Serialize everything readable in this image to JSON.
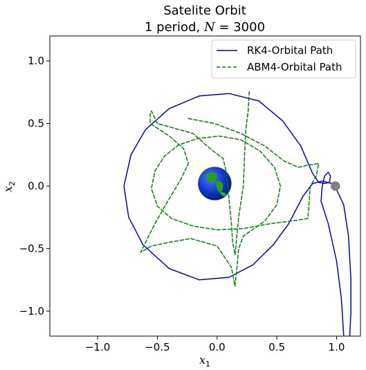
{
  "chart_data": {
    "type": "line",
    "title_line1": "Satelite Orbit",
    "title_line2_prefix": "1 period, ",
    "title_line2_var": "N",
    "title_line2_suffix": " = 3000",
    "xlabel": {
      "symbol": "x",
      "subscript": "1"
    },
    "ylabel": {
      "symbol": "x",
      "subscript": "2"
    },
    "xlim": [
      -1.4,
      1.2
    ],
    "ylim": [
      -1.2,
      1.2
    ],
    "xticks": [
      -1.0,
      -0.5,
      0.0,
      0.5,
      1.0
    ],
    "xtick_labels": [
      "−1.0",
      "−0.5",
      "0.0",
      "0.5",
      "1.0"
    ],
    "yticks": [
      -1.0,
      -0.5,
      0.0,
      0.5,
      1.0
    ],
    "ytick_labels": [
      "−1.0",
      "−0.5",
      "0.0",
      "0.5",
      "1.0"
    ],
    "legend_position": "top-right",
    "series": [
      {
        "name": "RK4-Orbital Path",
        "color": "#0000cc",
        "style": "solid",
        "points": [
          [
            1.06,
            -1.2
          ],
          [
            1.04,
            -0.9
          ],
          [
            1.0,
            -0.6
          ],
          [
            0.93,
            -0.3
          ],
          [
            0.87,
            -0.12
          ],
          [
            0.88,
            0.0
          ],
          [
            0.9,
            0.08
          ],
          [
            0.93,
            0.11
          ],
          [
            0.95,
            0.08
          ],
          [
            0.94,
            0.03
          ],
          [
            0.9,
            0.02
          ],
          [
            0.85,
            0.03
          ],
          [
            0.8,
            0.1
          ],
          [
            0.7,
            0.32
          ],
          [
            0.55,
            0.52
          ],
          [
            0.35,
            0.68
          ],
          [
            0.1,
            0.74
          ],
          [
            -0.15,
            0.72
          ],
          [
            -0.4,
            0.62
          ],
          [
            -0.6,
            0.45
          ],
          [
            -0.72,
            0.25
          ],
          [
            -0.78,
            0.0
          ],
          [
            -0.74,
            -0.25
          ],
          [
            -0.62,
            -0.47
          ],
          [
            -0.4,
            -0.66
          ],
          [
            -0.15,
            -0.75
          ],
          [
            0.1,
            -0.73
          ],
          [
            0.3,
            -0.63
          ],
          [
            0.47,
            -0.47
          ],
          [
            0.6,
            -0.3
          ],
          [
            0.72,
            -0.08
          ],
          [
            0.8,
            0.02
          ],
          [
            0.88,
            0.04
          ],
          [
            0.96,
            0.02
          ],
          [
            1.0,
            -0.03
          ],
          [
            1.06,
            -0.15
          ],
          [
            1.1,
            -0.4
          ],
          [
            1.12,
            -0.75
          ],
          [
            1.12,
            -1.0
          ],
          [
            1.11,
            -1.2
          ]
        ]
      },
      {
        "name": "ABM4-Orbital Path",
        "color": "#008000",
        "style": "dashed",
        "points": [
          [
            -0.24,
            0.54
          ],
          [
            -0.02,
            0.5
          ],
          [
            0.2,
            0.42
          ],
          [
            0.4,
            0.32
          ],
          [
            0.56,
            0.2
          ],
          [
            0.68,
            0.15
          ],
          [
            0.78,
            0.17
          ],
          [
            0.85,
            0.18
          ],
          [
            0.83,
            0.08
          ],
          [
            0.78,
            0.0
          ],
          [
            0.76,
            -0.26
          ],
          [
            0.62,
            -0.28
          ],
          [
            0.45,
            -0.3
          ],
          [
            0.22,
            -0.34
          ],
          [
            0.0,
            -0.35
          ],
          [
            -0.2,
            -0.32
          ],
          [
            -0.38,
            -0.26
          ],
          [
            -0.5,
            -0.16
          ],
          [
            -0.55,
            -0.02
          ],
          [
            -0.52,
            0.12
          ],
          [
            -0.44,
            0.24
          ],
          [
            -0.32,
            0.33
          ],
          [
            -0.16,
            0.38
          ],
          [
            0.02,
            0.4
          ],
          [
            0.2,
            0.37
          ],
          [
            0.36,
            0.28
          ],
          [
            0.48,
            0.15
          ],
          [
            0.53,
            0.0
          ],
          [
            0.5,
            -0.15
          ],
          [
            0.4,
            -0.28
          ],
          [
            0.22,
            -0.4
          ],
          [
            0.18,
            -0.5
          ],
          [
            0.17,
            -0.62
          ],
          [
            0.15,
            -0.8
          ],
          [
            0.12,
            -0.65
          ],
          [
            0.0,
            -0.48
          ],
          [
            -0.22,
            -0.42
          ],
          [
            -0.4,
            -0.45
          ],
          [
            -0.55,
            -0.48
          ],
          [
            -0.64,
            -0.53
          ],
          [
            -0.52,
            -0.3
          ],
          [
            -0.4,
            -0.1
          ],
          [
            -0.3,
            0.06
          ],
          [
            -0.24,
            0.18
          ],
          [
            -0.28,
            0.3
          ],
          [
            -0.4,
            0.4
          ],
          [
            -0.56,
            0.5
          ],
          [
            -0.56,
            0.58
          ],
          [
            -0.55,
            0.6
          ],
          [
            -0.5,
            0.5
          ],
          [
            -0.35,
            0.46
          ],
          [
            -0.2,
            0.42
          ],
          [
            -0.06,
            0.3
          ],
          [
            0.05,
            0.22
          ],
          [
            0.08,
            0.1
          ],
          [
            0.1,
            -0.1
          ],
          [
            0.12,
            -0.3
          ],
          [
            0.13,
            -0.45
          ],
          [
            0.15,
            -0.55
          ],
          [
            0.18,
            -0.25
          ],
          [
            0.22,
            0.0
          ],
          [
            0.23,
            0.25
          ],
          [
            0.24,
            0.45
          ],
          [
            0.26,
            0.6
          ],
          [
            0.27,
            0.77
          ]
        ]
      }
    ],
    "earth": {
      "x": -0.02,
      "y": 0.02,
      "r": 0.14
    },
    "satellite": {
      "x": 0.99,
      "y": 0.0,
      "r": 0.03
    }
  }
}
